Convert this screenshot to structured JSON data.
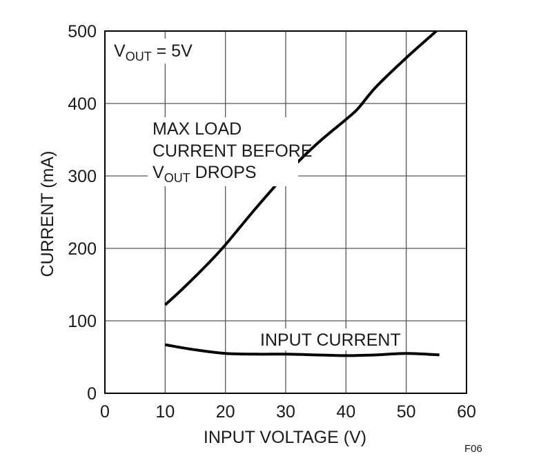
{
  "chart_data": {
    "type": "line",
    "title": "",
    "xlabel": "INPUT VOLTAGE (V)",
    "ylabel": "CURRENT (mA)",
    "xlim": [
      0,
      60
    ],
    "ylim": [
      0,
      500
    ],
    "xticks": [
      0,
      10,
      20,
      30,
      40,
      50,
      60
    ],
    "yticks": [
      0,
      100,
      200,
      300,
      400,
      500
    ],
    "grid": true,
    "colors": {
      "line": "#000000",
      "grid": "#555555",
      "frame": "#000000"
    },
    "series": [
      {
        "name": "MAX LOAD CURRENT BEFORE VOUT DROPS",
        "x": [
          10,
          13,
          17,
          20,
          25,
          30,
          35,
          40,
          42,
          45,
          50,
          55
        ],
        "y": [
          122,
          145,
          178,
          205,
          255,
          302,
          343,
          378,
          393,
          423,
          463,
          500
        ]
      },
      {
        "name": "INPUT CURRENT",
        "x": [
          10,
          15,
          20,
          25,
          30,
          35,
          40,
          45,
          50,
          55.5
        ],
        "y": [
          67,
          60,
          55,
          54,
          54,
          53,
          52,
          53,
          55,
          53
        ]
      }
    ],
    "annotations": {
      "vout_condition": {
        "prefix": "V",
        "sub": "OUT",
        "suffix": " = 5V"
      },
      "max_load_line1": "MAX LOAD",
      "max_load_line2": "CURRENT BEFORE",
      "max_load_line3": {
        "prefix": "V",
        "sub": "OUT",
        "suffix": " DROPS"
      },
      "input_current": "INPUT CURRENT"
    },
    "figure_id": "F06"
  }
}
